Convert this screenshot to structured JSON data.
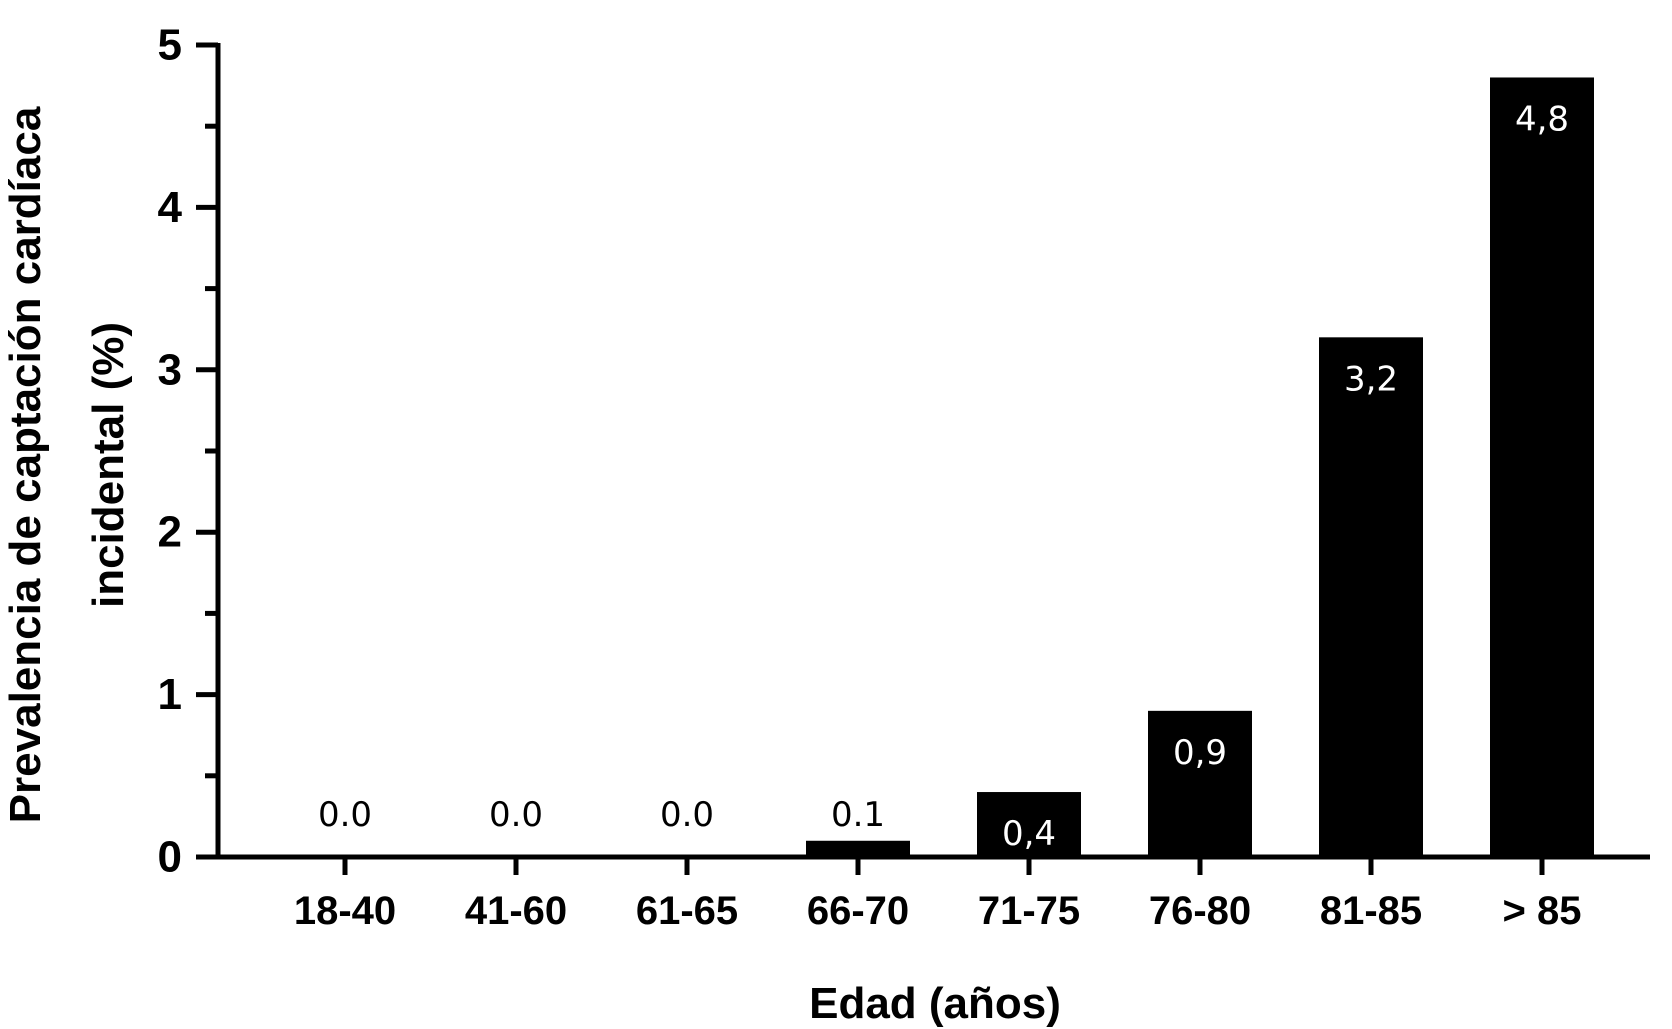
{
  "chart_data": {
    "type": "bar",
    "categories": [
      "18-40",
      "41-60",
      "61-65",
      "66-70",
      "71-75",
      "76-80",
      "81-85",
      "> 85"
    ],
    "values": [
      0.0,
      0.0,
      0.0,
      0.1,
      0.4,
      0.9,
      3.2,
      4.8
    ],
    "data_labels": [
      "0.0",
      "0.0",
      "0.0",
      "0.1",
      "0,4",
      "0,9",
      "3,2",
      "4,8"
    ],
    "xlabel": "Edad (años)",
    "ylabel_lines": [
      "Prevalencia de captación cardíaca",
      "incidental (%)"
    ],
    "ylim": [
      0,
      5
    ],
    "yticks": [
      0,
      1,
      2,
      3,
      4,
      5
    ],
    "grid": false,
    "legend": "none",
    "bar_color": "#000000",
    "label_color_inside": "#ffffff",
    "label_color_outside": "#000000"
  }
}
